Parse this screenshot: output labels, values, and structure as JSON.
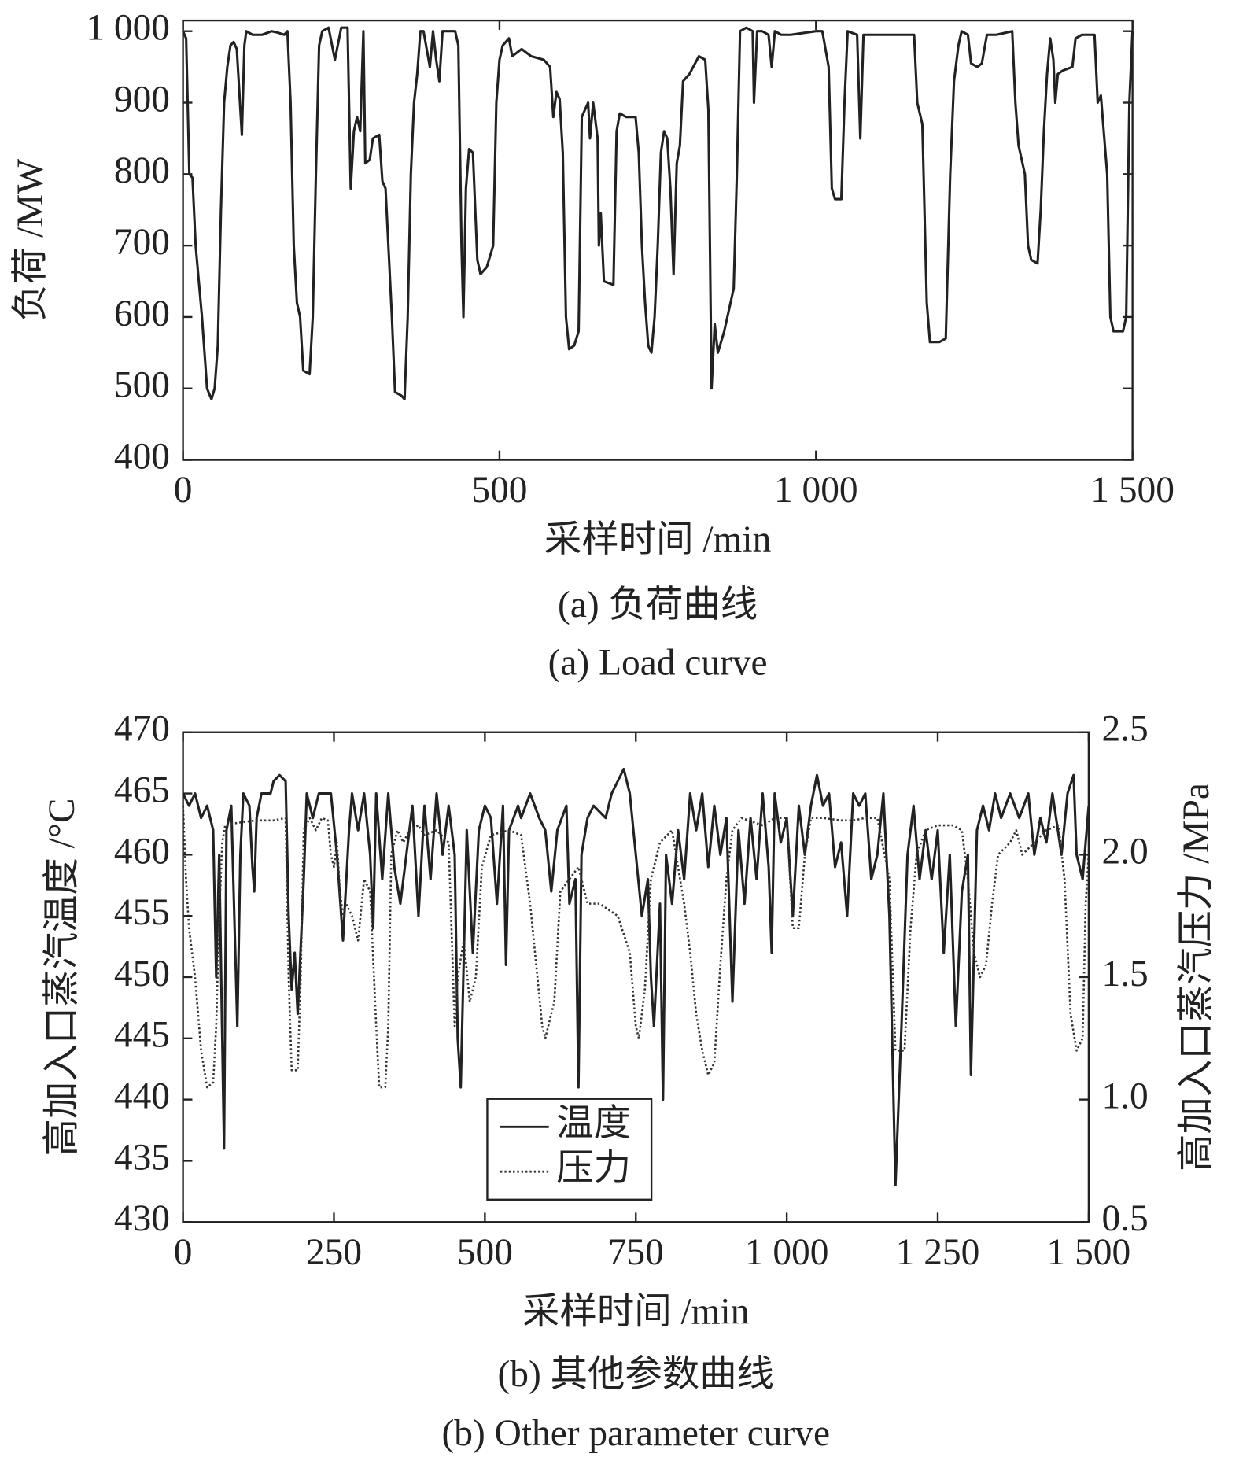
{
  "chart_data": [
    {
      "type": "line",
      "xlabel": "采样时间 /min",
      "ylabel": "负荷 /MW",
      "caption": "(a) 负荷曲线",
      "caption_en": "(a) Load curve",
      "xlim": [
        0,
        1500
      ],
      "xticks": [
        0,
        500,
        {
          "value": 1000,
          "label": "1 000"
        },
        {
          "value": 1500,
          "label": "1 500"
        }
      ],
      "ylim": [
        400,
        1015
      ],
      "yticks": [
        400,
        500,
        600,
        700,
        800,
        900,
        {
          "value": 1000,
          "label": "1 000"
        }
      ],
      "grid": false,
      "x": [
        0,
        5,
        10,
        15,
        20,
        30,
        38,
        45,
        50,
        55,
        60,
        65,
        70,
        75,
        80,
        85,
        90,
        93,
        97,
        100,
        110,
        125,
        140,
        150,
        160,
        165,
        170,
        175,
        180,
        185,
        190,
        200,
        205,
        210,
        215,
        220,
        230,
        240,
        250,
        260,
        265,
        270,
        275,
        280,
        285,
        288,
        295,
        300,
        310,
        315,
        320,
        325,
        330,
        335,
        345,
        350,
        355,
        360,
        365,
        370,
        375,
        380,
        390,
        395,
        400,
        405,
        410,
        420,
        430,
        435,
        440,
        443,
        447,
        452,
        458,
        465,
        470,
        480,
        490,
        495,
        500,
        505,
        515,
        520,
        535,
        550,
        570,
        580,
        585,
        590,
        595,
        600,
        605,
        610,
        618,
        625,
        630,
        640,
        643,
        648,
        655,
        657,
        660,
        665,
        680,
        685,
        690,
        700,
        715,
        720,
        725,
        730,
        735,
        740,
        745,
        750,
        755,
        760,
        765,
        770,
        775,
        780,
        785,
        790,
        800,
        815,
        825,
        830,
        835,
        840,
        845,
        855,
        865,
        870,
        875,
        880,
        890,
        900,
        902,
        907,
        915,
        925,
        930,
        935,
        945,
        960,
        1000,
        1010,
        1020,
        1025,
        1030,
        1040,
        1045,
        1050,
        1065,
        1070,
        1075,
        1090,
        1120,
        1155,
        1160,
        1168,
        1175,
        1180,
        1195,
        1205,
        1212,
        1218,
        1225,
        1230,
        1240,
        1245,
        1255,
        1262,
        1270,
        1285,
        1310,
        1315,
        1320,
        1330,
        1335,
        1340,
        1350,
        1355,
        1360,
        1365,
        1370,
        1375,
        1378,
        1382,
        1390,
        1405,
        1410,
        1420,
        1440,
        1445,
        1450,
        1460,
        1465,
        1470,
        1485,
        1490,
        1495,
        1500
      ],
      "series": [
        {
          "color": "#222222",
          "style": "solid",
          "values": [
            1000,
            990,
            800,
            795,
            700,
            600,
            500,
            485,
            500,
            560,
            750,
            900,
            950,
            980,
            985,
            975,
            900,
            855,
            980,
            1000,
            995,
            995,
            1000,
            998,
            995,
            1000,
            900,
            700,
            620,
            600,
            525,
            520,
            600,
            800,
            980,
            1000,
            1005,
            960,
            1005,
            1005,
            780,
            860,
            880,
            860,
            1000,
            815,
            820,
            850,
            855,
            790,
            780,
            690,
            600,
            495,
            490,
            485,
            600,
            800,
            900,
            940,
            1000,
            1000,
            950,
            1000,
            960,
            930,
            1000,
            1000,
            1000,
            980,
            700,
            600,
            780,
            835,
            830,
            680,
            660,
            670,
            700,
            900,
            960,
            980,
            990,
            965,
            975,
            965,
            960,
            950,
            880,
            915,
            905,
            830,
            600,
            555,
            560,
            580,
            880,
            900,
            850,
            900,
            850,
            700,
            745,
            650,
            645,
            860,
            885,
            880,
            880,
            830,
            700,
            620,
            560,
            550,
            600,
            700,
            830,
            860,
            850,
            780,
            660,
            815,
            840,
            930,
            940,
            965,
            960,
            890,
            500,
            590,
            550,
            580,
            620,
            640,
            800,
            1000,
            1005,
            1000,
            900,
            1000,
            1000,
            995,
            950,
            1000,
            995,
            995,
            1000,
            1000,
            950,
            780,
            765,
            765,
            900,
            1000,
            995,
            850,
            995,
            995,
            995,
            995,
            900,
            870,
            620,
            565,
            565,
            570,
            800,
            930,
            980,
            1000,
            995,
            955,
            950,
            955,
            995,
            995,
            1000,
            900,
            840,
            800,
            700,
            680,
            675,
            750,
            860,
            940,
            990,
            960,
            900,
            940,
            945,
            950,
            990,
            995,
            995,
            900,
            910,
            800,
            600,
            580,
            580,
            600,
            900,
            1000
          ]
        }
      ]
    },
    {
      "type": "line",
      "xlabel": "采样时间 /min",
      "ylabel": "高加入口蒸汽温度 /°C",
      "y2label": "高加入口蒸汽压力 /MPa",
      "caption": "(b) 其他参数曲线",
      "caption_en": "(b) Other parameter curve",
      "xlim": [
        0,
        1500
      ],
      "xticks": [
        0,
        250,
        500,
        750,
        {
          "value": 1000,
          "label": "1 000"
        },
        {
          "value": 1250,
          "label": "1 250"
        },
        {
          "value": 1500,
          "label": "1 500"
        }
      ],
      "ylim": [
        430,
        470
      ],
      "yticks": [
        430,
        435,
        440,
        445,
        450,
        455,
        460,
        465,
        470
      ],
      "y2lim": [
        0.5,
        2.5
      ],
      "y2ticks": [
        0.5,
        {
          "value": 1,
          "label": "1.0"
        },
        1.5,
        {
          "value": 2,
          "label": "2.0"
        },
        2.5
      ],
      "grid": false,
      "legend": "lower-center",
      "series": [
        {
          "name": "温度",
          "color": "#222222",
          "style": "solid",
          "x": [
            0,
            10,
            20,
            30,
            40,
            50,
            55,
            60,
            65,
            68,
            72,
            80,
            85,
            90,
            95,
            100,
            110,
            115,
            118,
            122,
            130,
            145,
            150,
            160,
            170,
            175,
            180,
            185,
            190,
            200,
            205,
            215,
            225,
            245,
            255,
            265,
            275,
            280,
            290,
            300,
            310,
            315,
            320,
            330,
            340,
            350,
            360,
            370,
            380,
            390,
            400,
            410,
            420,
            430,
            440,
            450,
            455,
            460,
            470,
            480,
            490,
            500,
            510,
            520,
            530,
            535,
            540,
            555,
            560,
            575,
            590,
            600,
            610,
            620,
            635,
            640,
            650,
            655,
            660,
            670,
            680,
            700,
            710,
            720,
            730,
            740,
            750,
            760,
            770,
            775,
            780,
            790,
            795,
            800,
            810,
            820,
            830,
            840,
            850,
            860,
            870,
            880,
            890,
            900,
            910,
            920,
            930,
            940,
            950,
            960,
            970,
            975,
            980,
            990,
            1000,
            1010,
            1020,
            1030,
            1040,
            1050,
            1060,
            1070,
            1080,
            1090,
            1100,
            1110,
            1120,
            1130,
            1140,
            1150,
            1160,
            1170,
            1180,
            1190,
            1200,
            1210,
            1220,
            1230,
            1240,
            1250,
            1260,
            1270,
            1280,
            1290,
            1300,
            1305,
            1315,
            1325,
            1335,
            1345,
            1355,
            1370,
            1385,
            1400,
            1410,
            1420,
            1430,
            1440,
            1455,
            1465,
            1475,
            1480,
            1490,
            1500
          ],
          "values": [
            465,
            464,
            465,
            463,
            464,
            462,
            450,
            460,
            445,
            436,
            462,
            464,
            455,
            446,
            460,
            465,
            464,
            459,
            457,
            463,
            465,
            465,
            466,
            466.5,
            466,
            455,
            449,
            452,
            447,
            458,
            465,
            463,
            465,
            465,
            460,
            453,
            462,
            465,
            462,
            465,
            460,
            454,
            465,
            458,
            465,
            459,
            456,
            460,
            464,
            455,
            464,
            458,
            465,
            460,
            464,
            460,
            445,
            441,
            462,
            452,
            462,
            464,
            463,
            456,
            464,
            451,
            462,
            464,
            463,
            465,
            463,
            462,
            457,
            462,
            464,
            456,
            458,
            441,
            460,
            463,
            464,
            463,
            465,
            466,
            467,
            465,
            460,
            455,
            458,
            450,
            446,
            456,
            440,
            460,
            456,
            462,
            458,
            465,
            462,
            465,
            459,
            464,
            460,
            463,
            448,
            462,
            456,
            463,
            458,
            465,
            459,
            452,
            465,
            461,
            463,
            455,
            464,
            460,
            464,
            466.5,
            464,
            465,
            459,
            461,
            455,
            465,
            464,
            465,
            458,
            460,
            465,
            455,
            433,
            446,
            460,
            464,
            458,
            462,
            458,
            462,
            452,
            460,
            446,
            457,
            460,
            442,
            462,
            464,
            462,
            465,
            463,
            465,
            463,
            465,
            460,
            463,
            461,
            465,
            460,
            465,
            466.5,
            460,
            458,
            464
          ]
        },
        {
          "name": "压力",
          "color": "#333333",
          "style": "dotted",
          "axis": "y2",
          "x": [
            0,
            5,
            10,
            20,
            30,
            40,
            50,
            55,
            60,
            65,
            70,
            90,
            120,
            150,
            170,
            175,
            180,
            190,
            195,
            200,
            210,
            220,
            230,
            240,
            245,
            250,
            255,
            260,
            265,
            270,
            280,
            290,
            300,
            310,
            320,
            325,
            335,
            340,
            345,
            355,
            365,
            375,
            390,
            400,
            420,
            440,
            450,
            455,
            465,
            475,
            485,
            495,
            510,
            540,
            560,
            575,
            585,
            595,
            600,
            615,
            625,
            640,
            655,
            670,
            690,
            720,
            740,
            750,
            755,
            765,
            775,
            790,
            810,
            830,
            840,
            850,
            860,
            870,
            880,
            890,
            900,
            910,
            925,
            960,
            980,
            1000,
            1010,
            1020,
            1030,
            1040,
            1060,
            1090,
            1110,
            1130,
            1150,
            1170,
            1180,
            1195,
            1205,
            1215,
            1230,
            1250,
            1275,
            1290,
            1300,
            1310,
            1320,
            1330,
            1340,
            1350,
            1370,
            1380,
            1390,
            1410,
            1430,
            1450,
            1460,
            1470,
            1480,
            1490,
            1495,
            1500
          ],
          "values": [
            2.2,
            1.9,
            1.7,
            1.5,
            1.2,
            1.05,
            1.07,
            1.3,
            1.75,
            2.05,
            2.12,
            2.13,
            2.14,
            2.14,
            2.15,
            1.5,
            1.12,
            1.12,
            1.5,
            2.1,
            2.15,
            2.1,
            2.15,
            2.14,
            2.0,
            1.95,
            2.05,
            1.85,
            1.75,
            1.8,
            1.75,
            1.65,
            1.9,
            1.85,
            1.3,
            1.05,
            1.05,
            1.3,
            2.0,
            2.1,
            2.05,
            2.1,
            2.12,
            2.08,
            2.1,
            2.05,
            1.3,
            1.5,
            1.65,
            1.4,
            1.5,
            1.95,
            2.08,
            2.1,
            2.08,
            1.8,
            1.55,
            1.3,
            1.25,
            1.4,
            1.85,
            1.9,
            1.95,
            1.8,
            1.8,
            1.75,
            1.6,
            1.3,
            1.25,
            1.45,
            1.9,
            2.05,
            2.1,
            1.8,
            1.6,
            1.35,
            1.2,
            1.1,
            1.15,
            1.55,
            1.9,
            2.1,
            2.15,
            2.12,
            2.15,
            2.15,
            1.7,
            1.7,
            2.0,
            2.15,
            2.15,
            2.14,
            2.14,
            2.15,
            2.15,
            1.9,
            1.2,
            1.2,
            1.7,
            2.0,
            2.1,
            2.12,
            2.12,
            2.1,
            1.9,
            1.6,
            1.5,
            1.55,
            1.8,
            2.0,
            2.05,
            2.1,
            2.0,
            2.05,
            2.1,
            2.12,
            1.9,
            1.35,
            1.2,
            1.25,
            1.8,
            2.0
          ]
        }
      ]
    }
  ]
}
